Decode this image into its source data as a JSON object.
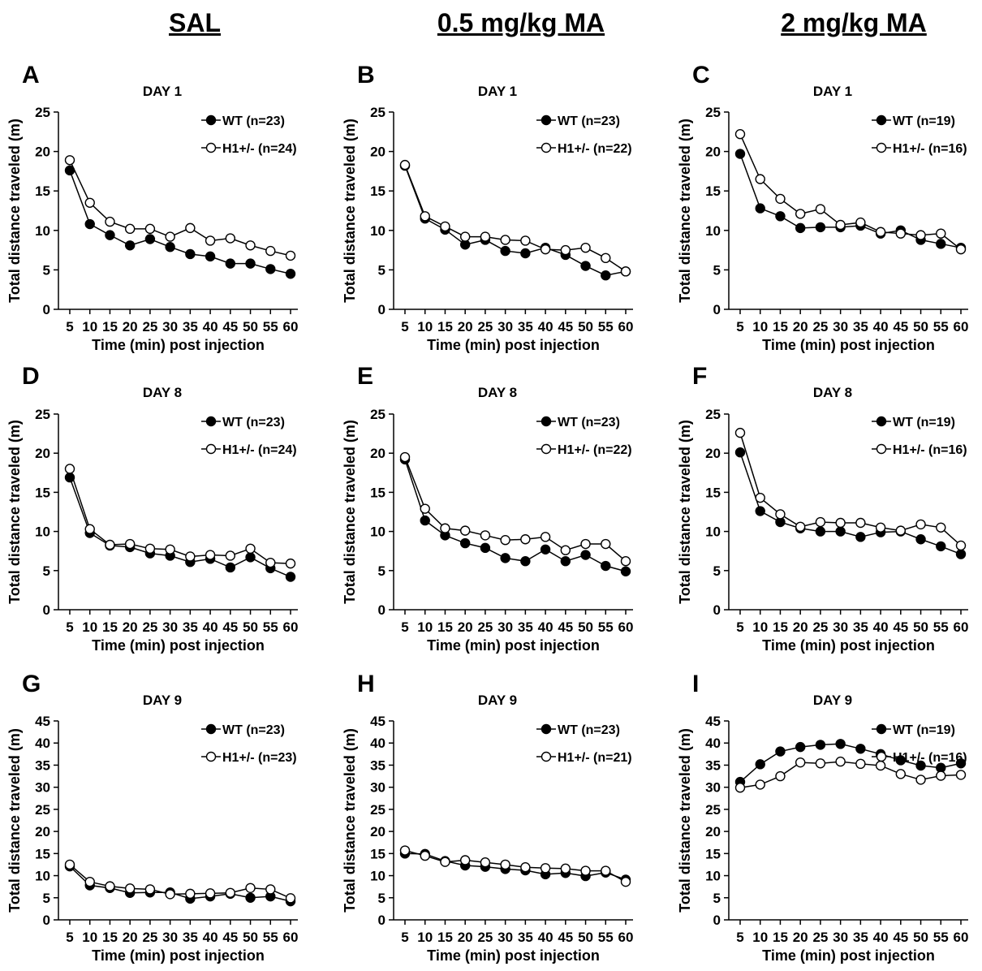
{
  "column_headers": [
    "SAL",
    "0.5 mg/kg MA",
    "2 mg/kg MA"
  ],
  "chart_data": [
    {
      "type": "line",
      "panel": "A",
      "title": "DAY 1",
      "xlabel": "Time (min) post injection",
      "ylabel": "Total distance traveled (m)",
      "x": [
        5,
        10,
        15,
        20,
        25,
        30,
        35,
        40,
        45,
        50,
        55,
        60
      ],
      "ylim": [
        0,
        25
      ],
      "yticks": [
        0,
        5,
        10,
        15,
        20,
        25
      ],
      "legend_position": "top-right",
      "series": [
        {
          "name": "WT (n=23)",
          "marker": "filled",
          "values": [
            17.6,
            10.8,
            9.4,
            8.1,
            8.9,
            7.9,
            7.0,
            6.7,
            5.8,
            5.8,
            5.1,
            4.5
          ]
        },
        {
          "name": "H1+/- (n=24)",
          "marker": "open",
          "values": [
            18.9,
            13.5,
            11.1,
            10.2,
            10.2,
            9.2,
            10.3,
            8.7,
            9.0,
            8.1,
            7.4,
            6.8
          ]
        }
      ]
    },
    {
      "type": "line",
      "panel": "B",
      "title": "DAY 1",
      "xlabel": "Time (min) post injection",
      "ylabel": "Total distance traveled (m)",
      "x": [
        5,
        10,
        15,
        20,
        25,
        30,
        35,
        40,
        45,
        50,
        55,
        60
      ],
      "ylim": [
        0,
        25
      ],
      "yticks": [
        0,
        5,
        10,
        15,
        20,
        25
      ],
      "legend_position": "top-right",
      "series": [
        {
          "name": "WT (n=23)",
          "marker": "filled",
          "values": [
            18.2,
            11.5,
            10.1,
            8.2,
            8.8,
            7.4,
            7.1,
            7.8,
            6.9,
            5.5,
            4.3,
            4.8
          ]
        },
        {
          "name": "H1+/- (n=22)",
          "marker": "open",
          "values": [
            18.3,
            11.8,
            10.5,
            9.2,
            9.2,
            8.8,
            8.7,
            7.6,
            7.5,
            7.8,
            6.5,
            4.8
          ]
        }
      ]
    },
    {
      "type": "line",
      "panel": "C",
      "title": "DAY 1",
      "xlabel": "Time (min) post injection",
      "ylabel": "Total distance traveled (m)",
      "x": [
        5,
        10,
        15,
        20,
        25,
        30,
        35,
        40,
        45,
        50,
        55,
        60
      ],
      "ylim": [
        0,
        25
      ],
      "yticks": [
        0,
        5,
        10,
        15,
        20,
        25
      ],
      "legend_position": "top-right",
      "series": [
        {
          "name": "WT (n=19)",
          "marker": "filled",
          "values": [
            19.7,
            12.8,
            11.8,
            10.3,
            10.4,
            10.4,
            10.6,
            9.6,
            10.0,
            8.8,
            8.3,
            7.8
          ]
        },
        {
          "name": "H1+/- (n=16)",
          "marker": "open",
          "values": [
            22.2,
            16.5,
            14.0,
            12.1,
            12.7,
            10.7,
            11.0,
            9.8,
            9.6,
            9.4,
            9.6,
            7.6
          ]
        }
      ]
    },
    {
      "type": "line",
      "panel": "D",
      "title": "DAY 8",
      "xlabel": "Time (min) post injection",
      "ylabel": "Total distance traveled (m)",
      "x": [
        5,
        10,
        15,
        20,
        25,
        30,
        35,
        40,
        45,
        50,
        55,
        60
      ],
      "ylim": [
        0,
        25
      ],
      "yticks": [
        0,
        5,
        10,
        15,
        20,
        25
      ],
      "legend_position": "top-right",
      "series": [
        {
          "name": "WT (n=23)",
          "marker": "filled",
          "values": [
            16.9,
            9.8,
            8.2,
            8.0,
            7.2,
            6.9,
            6.1,
            6.5,
            5.4,
            6.7,
            5.3,
            4.2
          ]
        },
        {
          "name": "H1+/- (n=24)",
          "marker": "open",
          "values": [
            18.0,
            10.3,
            8.3,
            8.4,
            7.8,
            7.7,
            6.8,
            7.0,
            6.9,
            7.8,
            6.0,
            5.9
          ]
        }
      ]
    },
    {
      "type": "line",
      "panel": "E",
      "title": "DAY 8",
      "xlabel": "Time (min) post injection",
      "ylabel": "Total distance traveled (m)",
      "x": [
        5,
        10,
        15,
        20,
        25,
        30,
        35,
        40,
        45,
        50,
        55,
        60
      ],
      "ylim": [
        0,
        25
      ],
      "yticks": [
        0,
        5,
        10,
        15,
        20,
        25
      ],
      "legend_position": "top-right",
      "series": [
        {
          "name": "WT (n=23)",
          "marker": "filled",
          "values": [
            19.2,
            11.4,
            9.5,
            8.5,
            7.9,
            6.6,
            6.2,
            7.7,
            6.2,
            7.0,
            5.6,
            4.9
          ]
        },
        {
          "name": "H1+/- (n=22)",
          "marker": "open",
          "values": [
            19.5,
            12.9,
            10.4,
            10.1,
            9.5,
            8.9,
            9.0,
            9.3,
            7.6,
            8.4,
            8.4,
            6.2
          ]
        }
      ]
    },
    {
      "type": "line",
      "panel": "F",
      "title": "DAY 8",
      "xlabel": "Time (min) post injection",
      "ylabel": "Total distance traveled (m)",
      "x": [
        5,
        10,
        15,
        20,
        25,
        30,
        35,
        40,
        45,
        50,
        55,
        60
      ],
      "ylim": [
        0,
        25
      ],
      "yticks": [
        0,
        5,
        10,
        15,
        20,
        25
      ],
      "legend_position": "top-right",
      "series": [
        {
          "name": "WT (n=19)",
          "marker": "filled",
          "values": [
            20.1,
            12.6,
            11.2,
            10.4,
            10.0,
            10.0,
            9.3,
            9.9,
            10.0,
            9.0,
            8.1,
            7.1
          ]
        },
        {
          "name": "H1+/- (n=16)",
          "marker": "open",
          "values": [
            22.6,
            14.3,
            12.2,
            10.6,
            11.2,
            11.1,
            11.1,
            10.5,
            10.1,
            10.9,
            10.5,
            8.2
          ]
        }
      ]
    },
    {
      "type": "line",
      "panel": "G",
      "title": "DAY 9",
      "xlabel": "Time (min) post injection",
      "ylabel": "Total distance traveled (m)",
      "x": [
        5,
        10,
        15,
        20,
        25,
        30,
        35,
        40,
        45,
        50,
        55,
        60
      ],
      "ylim": [
        0,
        45
      ],
      "yticks": [
        0,
        5,
        10,
        15,
        20,
        25,
        30,
        35,
        40,
        45
      ],
      "legend_position": "top-right",
      "series": [
        {
          "name": "WT (n=23)",
          "marker": "filled",
          "values": [
            12.1,
            7.8,
            7.2,
            6.1,
            6.2,
            6.2,
            4.8,
            5.3,
            5.9,
            5.0,
            5.3,
            4.2
          ]
        },
        {
          "name": "H1+/- (n=23)",
          "marker": "open",
          "values": [
            12.5,
            8.6,
            7.6,
            7.1,
            6.9,
            5.8,
            5.9,
            6.0,
            6.1,
            7.2,
            6.9,
            4.9
          ]
        }
      ]
    },
    {
      "type": "line",
      "panel": "H",
      "title": "DAY 9",
      "xlabel": "Time (min) post injection",
      "ylabel": "Total distance traveled (m)",
      "x": [
        5,
        10,
        15,
        20,
        25,
        30,
        35,
        40,
        45,
        50,
        55,
        60
      ],
      "ylim": [
        0,
        45
      ],
      "yticks": [
        0,
        5,
        10,
        15,
        20,
        25,
        30,
        35,
        40,
        45
      ],
      "legend_position": "top-right",
      "series": [
        {
          "name": "WT (n=23)",
          "marker": "filled",
          "values": [
            15.0,
            14.9,
            13.3,
            12.3,
            12.0,
            11.5,
            11.2,
            10.3,
            10.6,
            9.9,
            10.7,
            9.1
          ]
        },
        {
          "name": "H1+/- (n=21)",
          "marker": "open",
          "values": [
            15.7,
            14.5,
            13.1,
            13.5,
            13.0,
            12.5,
            11.9,
            11.7,
            11.6,
            11.1,
            11.1,
            8.6
          ]
        }
      ]
    },
    {
      "type": "line",
      "panel": "I",
      "title": "DAY 9",
      "xlabel": "Time (min) post injection",
      "ylabel": "Total distance traveled (m)",
      "x": [
        5,
        10,
        15,
        20,
        25,
        30,
        35,
        40,
        45,
        50,
        55,
        60
      ],
      "ylim": [
        0,
        45
      ],
      "yticks": [
        0,
        5,
        10,
        15,
        20,
        25,
        30,
        35,
        40,
        45
      ],
      "legend_position": "top-right",
      "series": [
        {
          "name": "WT (n=19)",
          "marker": "filled",
          "values": [
            31.2,
            35.2,
            38.1,
            39.1,
            39.6,
            39.8,
            38.7,
            37.5,
            36.1,
            34.9,
            34.4,
            35.4
          ]
        },
        {
          "name": "H1+/- (n=16)",
          "marker": "open",
          "values": [
            29.9,
            30.6,
            32.5,
            35.6,
            35.4,
            35.8,
            35.3,
            34.9,
            33.0,
            31.7,
            32.6,
            32.8
          ]
        }
      ]
    }
  ]
}
